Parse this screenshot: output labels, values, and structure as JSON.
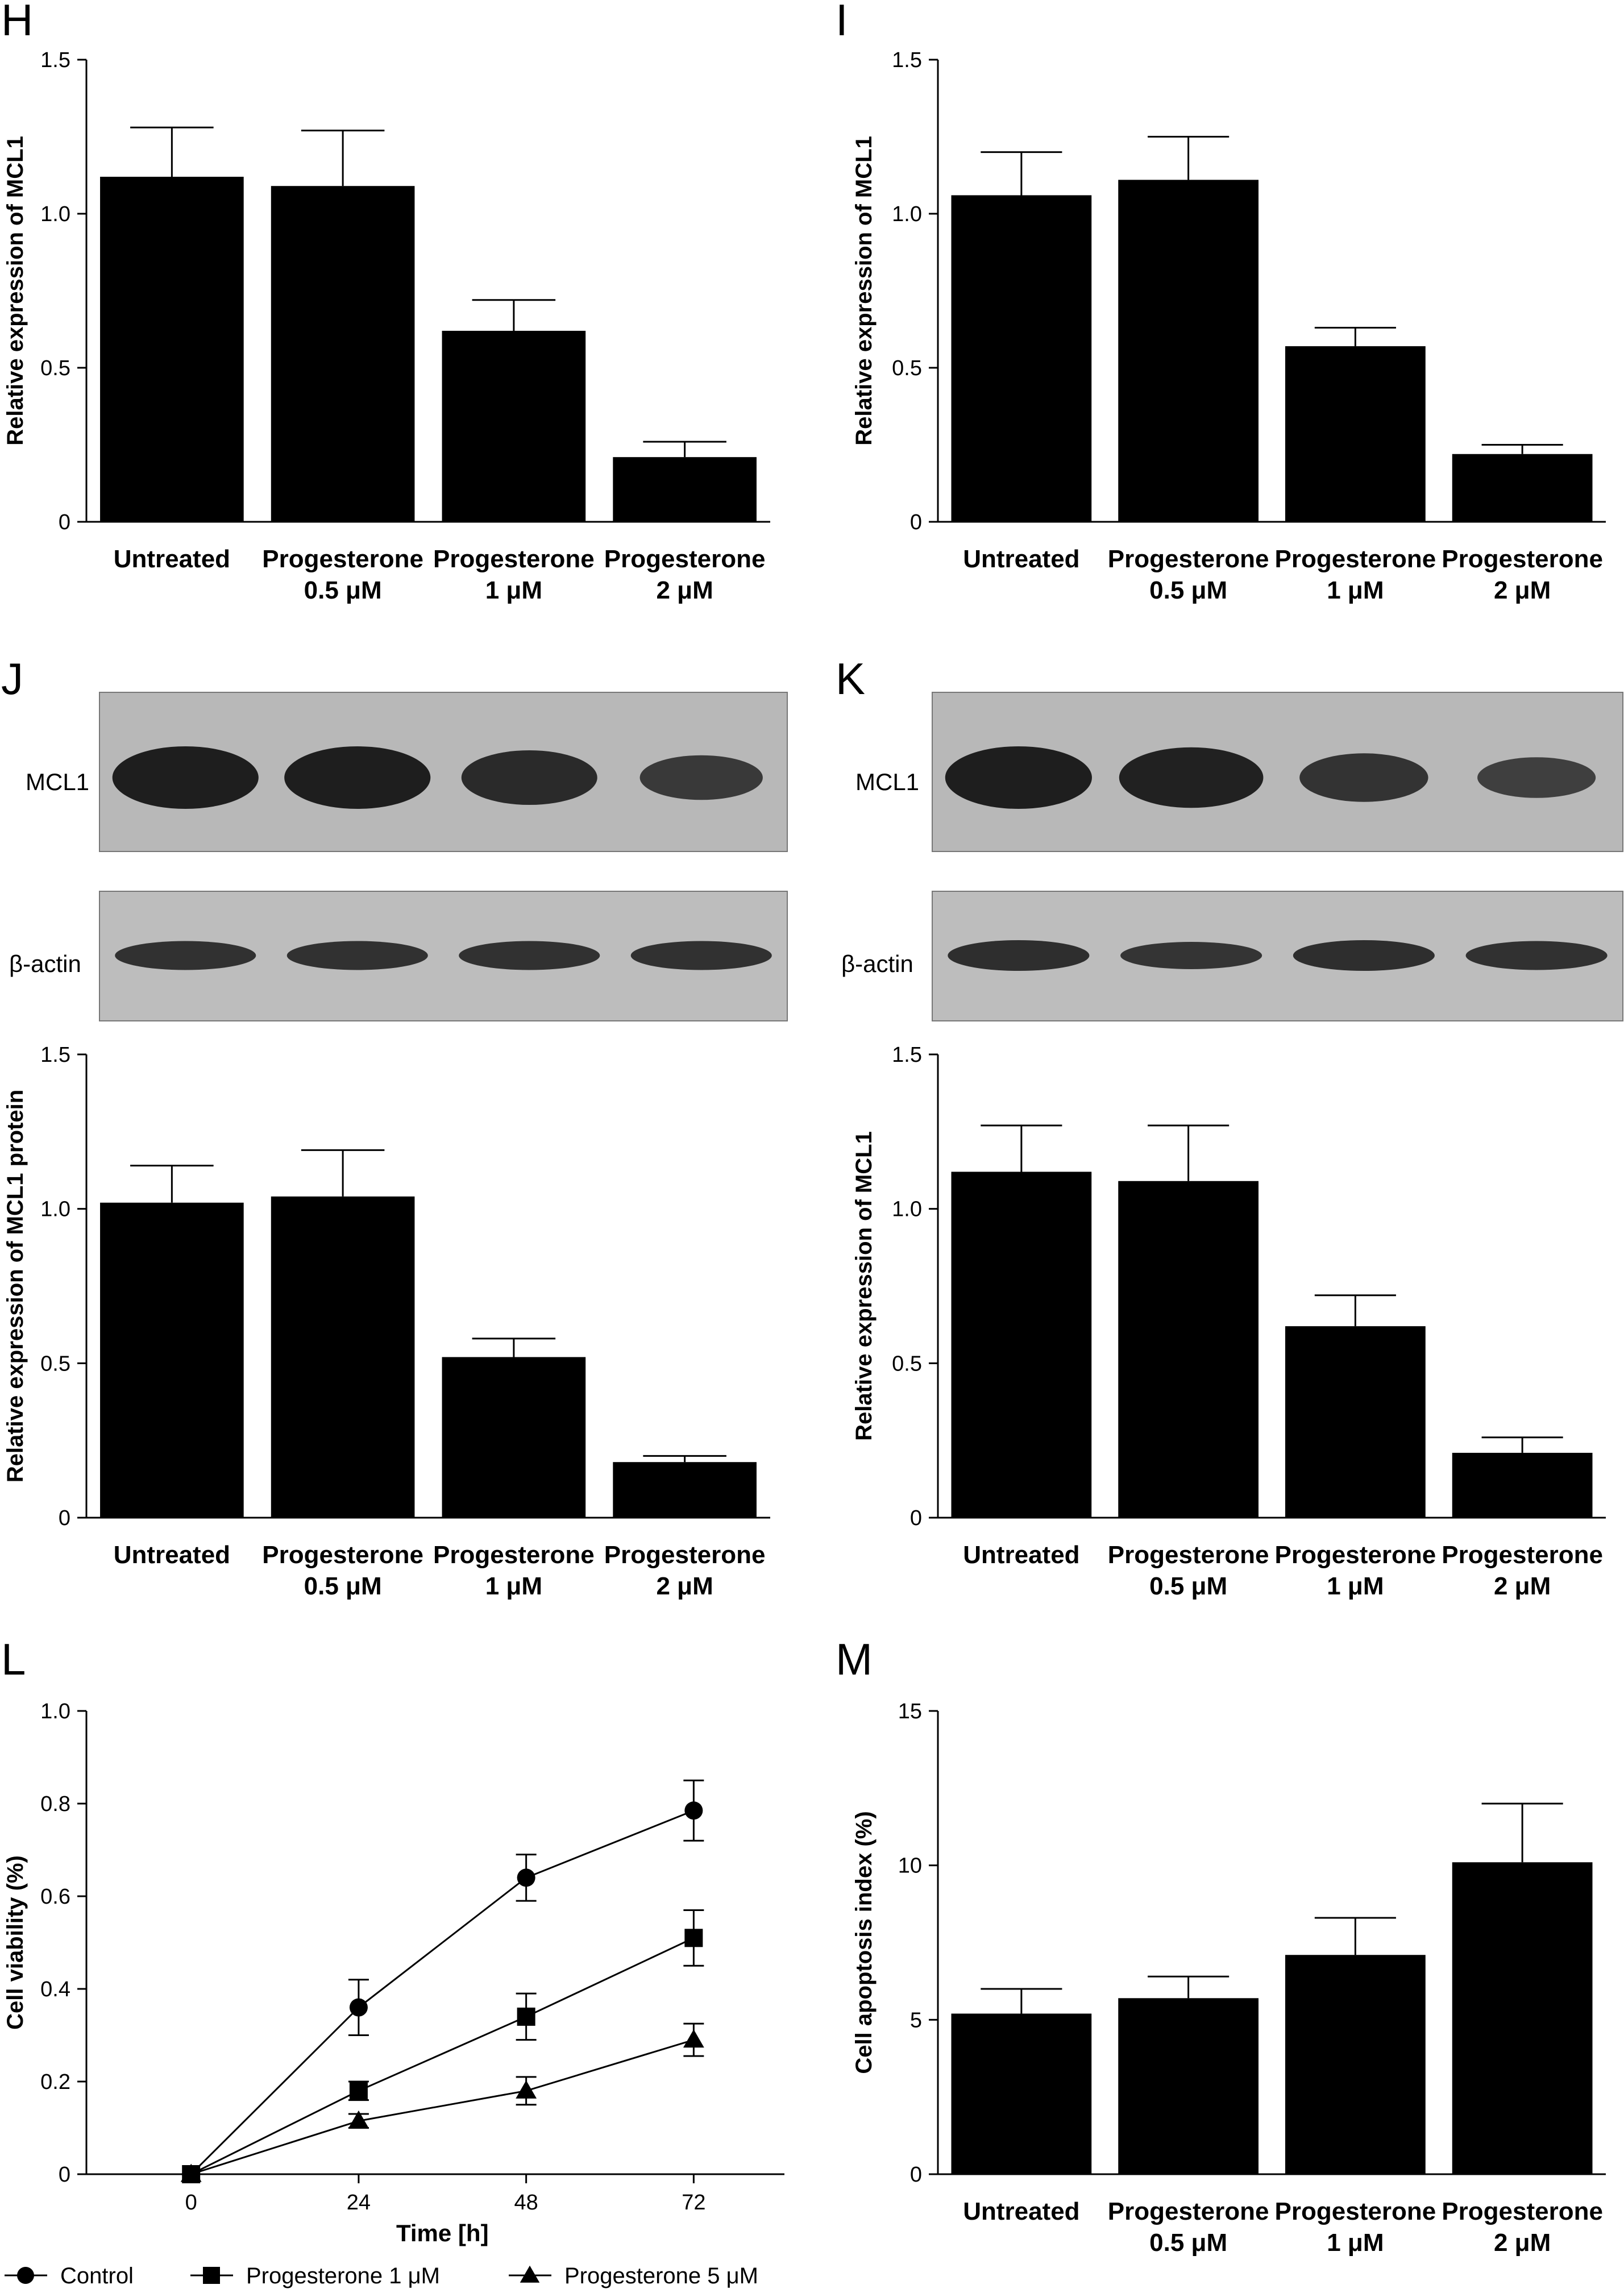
{
  "panels": {
    "H": {
      "letter": "H"
    },
    "I": {
      "letter": "I"
    },
    "J": {
      "letter": "J"
    },
    "K": {
      "letter": "K"
    },
    "L": {
      "letter": "L"
    },
    "M": {
      "letter": "M"
    }
  },
  "blots": {
    "J": {
      "mcl1_label": "MCL1",
      "actin_label": "β-actin",
      "mcl1_intensity": [
        1.0,
        1.0,
        0.8,
        0.55
      ],
      "actin_intensity": [
        0.85,
        0.85,
        0.85,
        0.85
      ]
    },
    "K": {
      "mcl1_label": "MCL1",
      "actin_label": "β-actin",
      "mcl1_intensity": [
        1.0,
        0.95,
        0.65,
        0.45
      ],
      "actin_intensity": [
        0.9,
        0.8,
        0.9,
        0.85
      ]
    }
  },
  "chart_data": [
    {
      "id": "H",
      "type": "bar",
      "categories": [
        [
          "Untreated"
        ],
        [
          "Progesterone",
          "0.5 μM"
        ],
        [
          "Progesterone",
          "1 μM"
        ],
        [
          "Progesterone",
          "2 μM"
        ]
      ],
      "values": [
        1.12,
        1.09,
        0.62,
        0.21
      ],
      "errors": [
        0.16,
        0.18,
        0.1,
        0.05
      ],
      "ylabel": "Relative expression of MCL1",
      "ylim": [
        0,
        1.5
      ],
      "yticks": [
        0,
        0.5,
        1.0,
        1.5
      ],
      "yticklabels": [
        "0",
        "0.5",
        "1.0",
        "1.5"
      ]
    },
    {
      "id": "I",
      "type": "bar",
      "categories": [
        [
          "Untreated"
        ],
        [
          "Progesterone",
          "0.5 μM"
        ],
        [
          "Progesterone",
          "1 μM"
        ],
        [
          "Progesterone",
          "2 μM"
        ]
      ],
      "values": [
        1.06,
        1.11,
        0.57,
        0.22
      ],
      "errors": [
        0.14,
        0.14,
        0.06,
        0.03
      ],
      "ylabel": "Relative expression of MCL1",
      "ylim": [
        0,
        1.5
      ],
      "yticks": [
        0,
        0.5,
        1.0,
        1.5
      ],
      "yticklabels": [
        "0",
        "0.5",
        "1.0",
        "1.5"
      ]
    },
    {
      "id": "J",
      "type": "bar",
      "categories": [
        [
          "Untreated"
        ],
        [
          "Progesterone",
          "0.5 μM"
        ],
        [
          "Progesterone",
          "1 μM"
        ],
        [
          "Progesterone",
          "2 μM"
        ]
      ],
      "values": [
        1.02,
        1.04,
        0.52,
        0.18
      ],
      "errors": [
        0.12,
        0.15,
        0.06,
        0.02
      ],
      "ylabel": "Relative expression of MCL1 protein",
      "ylim": [
        0,
        1.5
      ],
      "yticks": [
        0,
        0.5,
        1.0,
        1.5
      ],
      "yticklabels": [
        "0",
        "0.5",
        "1.0",
        "1.5"
      ]
    },
    {
      "id": "K",
      "type": "bar",
      "categories": [
        [
          "Untreated"
        ],
        [
          "Progesterone",
          "0.5 μM"
        ],
        [
          "Progesterone",
          "1 μM"
        ],
        [
          "Progesterone",
          "2 μM"
        ]
      ],
      "values": [
        1.12,
        1.09,
        0.62,
        0.21
      ],
      "errors": [
        0.15,
        0.18,
        0.1,
        0.05
      ],
      "ylabel": "Relative expression of MCL1",
      "ylim": [
        0,
        1.5
      ],
      "yticks": [
        0,
        0.5,
        1.0,
        1.5
      ],
      "yticklabels": [
        "0",
        "0.5",
        "1.0",
        "1.5"
      ]
    },
    {
      "id": "L",
      "type": "line",
      "x": [
        0,
        24,
        48,
        72
      ],
      "xlabel": "Time [h]",
      "ylabel": "Cell viability (%)",
      "xlim": [
        -15,
        85
      ],
      "xticks": [
        0,
        24,
        48,
        72
      ],
      "ylim": [
        0,
        1.0
      ],
      "yticks": [
        0,
        0.2,
        0.4,
        0.6,
        0.8,
        1.0
      ],
      "yticklabels": [
        "0",
        "0.2",
        "0.4",
        "0.6",
        "0.8",
        "1.0"
      ],
      "series": [
        {
          "name": "Control",
          "marker": "circle",
          "values": [
            0,
            0.36,
            0.64,
            0.785
          ],
          "errors": [
            0,
            0.06,
            0.05,
            0.065
          ]
        },
        {
          "name": "Progesterone 1 μM",
          "marker": "square",
          "values": [
            0,
            0.18,
            0.34,
            0.51
          ],
          "errors": [
            0,
            0.02,
            0.05,
            0.06
          ]
        },
        {
          "name": "Progesterone 5 μM",
          "marker": "triangle",
          "values": [
            0,
            0.115,
            0.18,
            0.29
          ],
          "errors": [
            0,
            0.015,
            0.03,
            0.035
          ]
        }
      ],
      "legend_position": "bottom"
    },
    {
      "id": "M",
      "type": "bar",
      "categories": [
        [
          "Untreated"
        ],
        [
          "Progesterone",
          "0.5 μM"
        ],
        [
          "Progesterone",
          "1 μM"
        ],
        [
          "Progesterone",
          "2 μM"
        ]
      ],
      "values": [
        5.2,
        5.7,
        7.1,
        10.1
      ],
      "errors": [
        0.8,
        0.7,
        1.2,
        1.9
      ],
      "ylabel": "Cell apoptosis index (%)",
      "ylim": [
        0,
        15
      ],
      "yticks": [
        0,
        5,
        10,
        15
      ],
      "yticklabels": [
        "0",
        "5",
        "10",
        "15"
      ]
    }
  ]
}
